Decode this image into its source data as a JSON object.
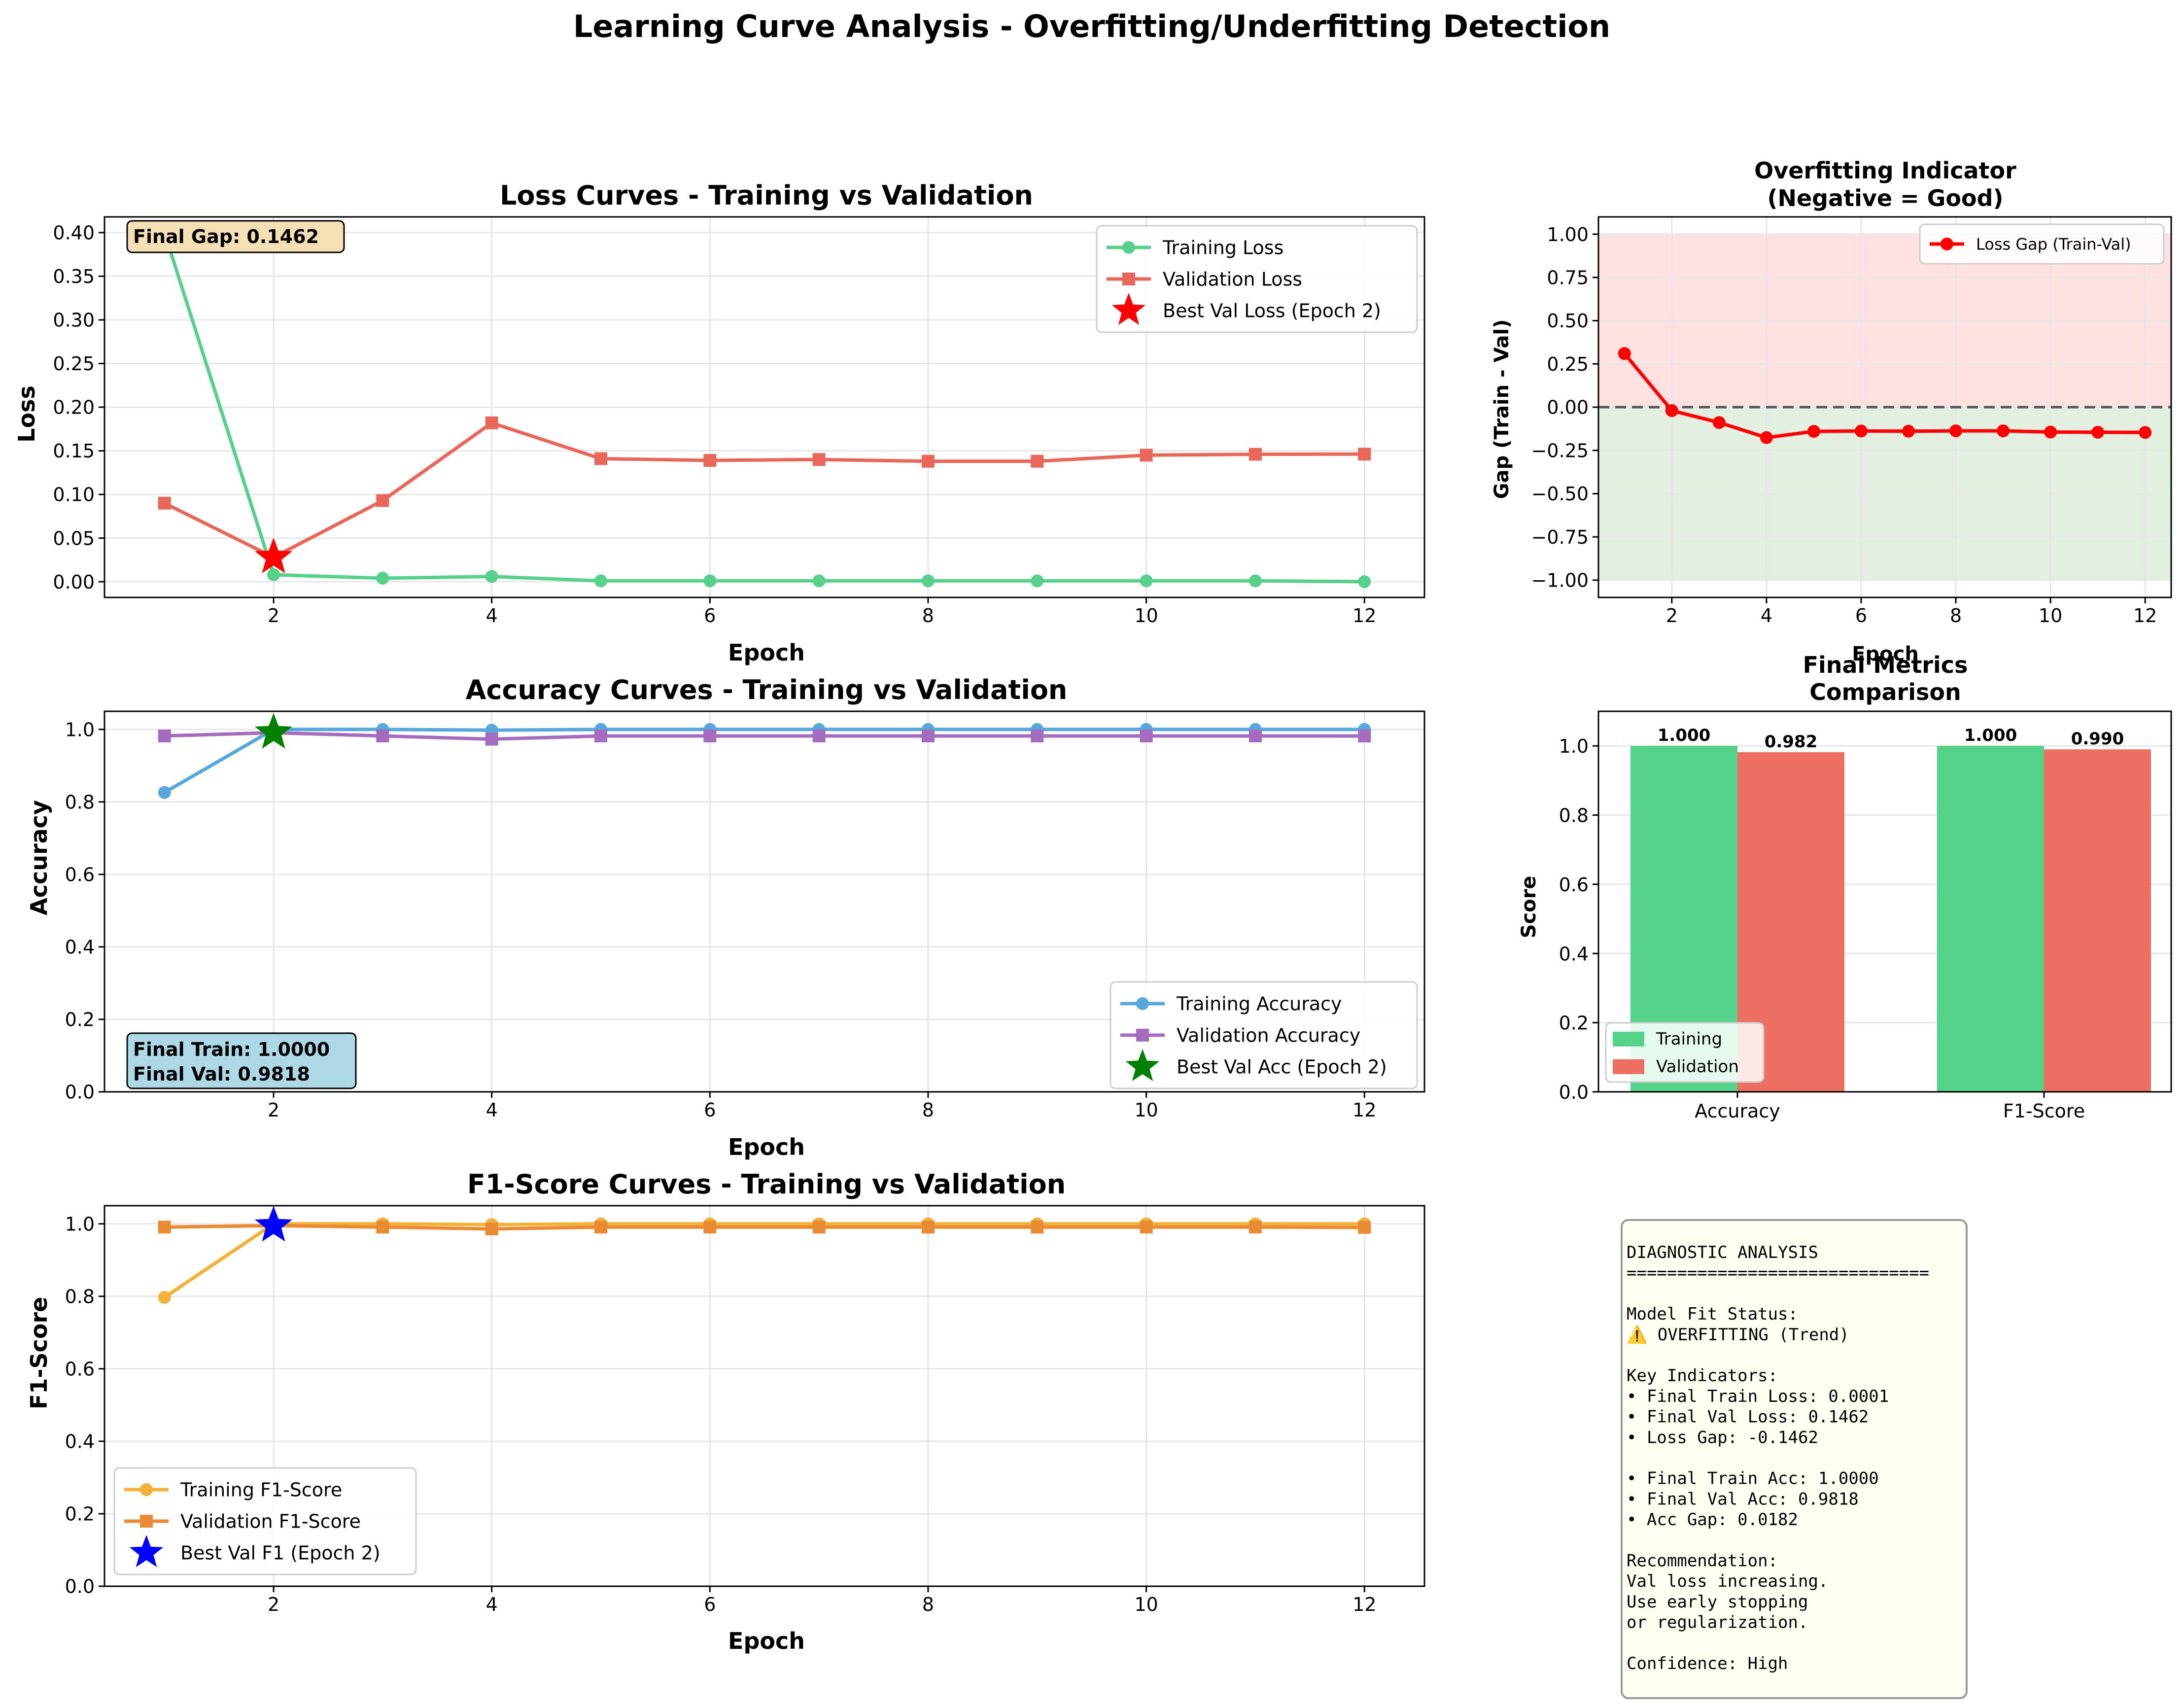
{
  "figure_title": "Learning Curve Analysis - Overfitting/Underfitting Detection",
  "colors": {
    "train_loss": "#56d08a",
    "val_loss": "#e8675a",
    "train_acc": "#57a6dc",
    "val_acc": "#a56bbf",
    "train_f1": "#f2b137",
    "val_f1": "#ea8b33",
    "gap": "#ff0000",
    "bar_train": "#56d38a",
    "bar_val": "#ec6f61"
  },
  "panels": {
    "loss": {
      "title": "Loss Curves - Training vs Validation",
      "gap_note": "Final Gap: 0.1462",
      "legend": [
        "Training Loss",
        "Validation Loss",
        "Best Val Loss (Epoch 2)"
      ]
    },
    "acc": {
      "title": "Accuracy Curves - Training vs Validation",
      "note_lines": [
        "Final Train: 1.0000",
        "Final Val: 0.9818"
      ],
      "legend": [
        "Training Accuracy",
        "Validation Accuracy",
        "Best Val Acc (Epoch 2)"
      ]
    },
    "f1": {
      "title": "F1-Score Curves - Training vs Validation",
      "legend": [
        "Training F1-Score",
        "Validation F1-Score",
        "Best Val F1 (Epoch 2)"
      ]
    },
    "gap": {
      "title_lines": [
        "Overfitting Indicator",
        "(Negative = Good)"
      ],
      "legend": [
        "Loss Gap (Train-Val)"
      ]
    },
    "bars": {
      "title_lines": [
        "Final Metrics",
        "Comparison"
      ],
      "legend": [
        "Training",
        "Validation"
      ]
    }
  },
  "diagnostic_lines": [
    "DIAGNOSTIC ANALYSIS",
    "==============================",
    "",
    "Model Fit Status:",
    "⚠️ OVERFITTING (Trend)",
    "",
    "Key Indicators:",
    "• Final Train Loss: 0.0001",
    "• Final Val Loss: 0.1462",
    "• Loss Gap: -0.1462",
    "",
    "• Final Train Acc: 1.0000",
    "• Final Val Acc: 0.9818",
    "• Acc Gap: 0.0182",
    "",
    "Recommendation:",
    "Val loss increasing.",
    "Use early stopping",
    "or regularization.",
    "",
    "Confidence: High"
  ],
  "chart_data": [
    {
      "type": "line",
      "id": "loss",
      "title": "Loss Curves - Training vs Validation",
      "xlabel": "Epoch",
      "ylabel": "Loss",
      "x": [
        1,
        2,
        3,
        4,
        5,
        6,
        7,
        8,
        9,
        10,
        11,
        12
      ],
      "xlim": [
        0.45,
        12.55
      ],
      "ylim": [
        -0.018,
        0.418
      ],
      "xticks": [
        2,
        4,
        6,
        8,
        10,
        12
      ],
      "yticks": [
        0.0,
        0.05,
        0.1,
        0.15,
        0.2,
        0.25,
        0.3,
        0.35,
        0.4
      ],
      "ytick_labels": [
        "0.00",
        "0.05",
        "0.10",
        "0.15",
        "0.20",
        "0.25",
        "0.30",
        "0.35",
        "0.40"
      ],
      "grid": true,
      "legend": "top-right",
      "series": [
        {
          "name": "Training Loss",
          "marker": "circle",
          "values": [
            0.4,
            0.008,
            0.004,
            0.006,
            0.001,
            0.001,
            0.001,
            0.001,
            0.001,
            0.001,
            0.001,
            0.0001
          ]
        },
        {
          "name": "Validation Loss",
          "marker": "square",
          "values": [
            0.09,
            0.028,
            0.093,
            0.182,
            0.141,
            0.139,
            0.14,
            0.138,
            0.138,
            0.145,
            0.146,
            0.1462
          ]
        }
      ],
      "best": {
        "name": "Best Val Loss (Epoch 2)",
        "x": 2,
        "y": 0.028,
        "color": "#ff0000"
      }
    },
    {
      "type": "line",
      "id": "acc",
      "title": "Accuracy Curves - Training vs Validation",
      "xlabel": "Epoch",
      "ylabel": "Accuracy",
      "x": [
        1,
        2,
        3,
        4,
        5,
        6,
        7,
        8,
        9,
        10,
        11,
        12
      ],
      "xlim": [
        0.45,
        12.55
      ],
      "ylim": [
        0,
        1.05
      ],
      "xticks": [
        2,
        4,
        6,
        8,
        10,
        12
      ],
      "yticks": [
        0,
        0.2,
        0.4,
        0.6,
        0.8,
        1.0
      ],
      "ytick_labels": [
        "0.0",
        "0.2",
        "0.4",
        "0.6",
        "0.8",
        "1.0"
      ],
      "grid": true,
      "legend": "bottom-right",
      "series": [
        {
          "name": "Training Accuracy",
          "marker": "circle",
          "values": [
            0.826,
            1.0,
            1.0,
            0.998,
            1.0,
            1.0,
            1.0,
            1.0,
            1.0,
            1.0,
            1.0,
            1.0
          ]
        },
        {
          "name": "Validation Accuracy",
          "marker": "square",
          "values": [
            0.982,
            0.991,
            0.982,
            0.973,
            0.982,
            0.982,
            0.982,
            0.982,
            0.982,
            0.982,
            0.982,
            0.9818
          ]
        }
      ],
      "best": {
        "name": "Best Val Acc (Epoch 2)",
        "x": 2,
        "y": 0.991,
        "color": "#008000"
      }
    },
    {
      "type": "line",
      "id": "f1",
      "title": "F1-Score Curves - Training vs Validation",
      "xlabel": "Epoch",
      "ylabel": "F1-Score",
      "x": [
        1,
        2,
        3,
        4,
        5,
        6,
        7,
        8,
        9,
        10,
        11,
        12
      ],
      "xlim": [
        0.45,
        12.55
      ],
      "ylim": [
        0,
        1.05
      ],
      "xticks": [
        2,
        4,
        6,
        8,
        10,
        12
      ],
      "yticks": [
        0,
        0.2,
        0.4,
        0.6,
        0.8,
        1.0
      ],
      "ytick_labels": [
        "0.0",
        "0.2",
        "0.4",
        "0.6",
        "0.8",
        "1.0"
      ],
      "grid": true,
      "legend": "bottom-left",
      "series": [
        {
          "name": "Training F1-Score",
          "marker": "circle",
          "values": [
            0.797,
            1.0,
            1.0,
            0.998,
            1.0,
            1.0,
            1.0,
            1.0,
            1.0,
            1.0,
            1.0,
            1.0
          ]
        },
        {
          "name": "Validation F1-Score",
          "marker": "square",
          "values": [
            0.991,
            0.995,
            0.991,
            0.986,
            0.991,
            0.991,
            0.991,
            0.991,
            0.991,
            0.991,
            0.991,
            0.99
          ]
        }
      ],
      "best": {
        "name": "Best Val F1 (Epoch 2)",
        "x": 2,
        "y": 0.995,
        "color": "#0000ff"
      }
    },
    {
      "type": "line",
      "id": "gap",
      "title": "Overfitting Indicator\n(Negative = Good)",
      "xlabel": "Epoch",
      "ylabel": "Gap (Train - Val)",
      "x": [
        1,
        2,
        3,
        4,
        5,
        6,
        7,
        8,
        9,
        10,
        11,
        12
      ],
      "xlim": [
        0.45,
        12.55
      ],
      "ylim": [
        -1.1,
        1.1
      ],
      "xticks": [
        2,
        4,
        6,
        8,
        10,
        12
      ],
      "yticks": [
        -1.0,
        -0.75,
        -0.5,
        -0.25,
        0,
        0.25,
        0.5,
        0.75,
        1.0
      ],
      "ytick_labels": [
        "−1.00",
        "−0.75",
        "−0.50",
        "−0.25",
        "0.00",
        "0.25",
        "0.50",
        "0.75",
        "1.00"
      ],
      "grid": true,
      "legend": "top-right",
      "series": [
        {
          "name": "Loss Gap (Train-Val)",
          "marker": "circle",
          "values": [
            0.31,
            -0.02,
            -0.089,
            -0.176,
            -0.14,
            -0.138,
            -0.139,
            -0.137,
            -0.137,
            -0.144,
            -0.145,
            -0.1462
          ]
        }
      ],
      "regions": [
        {
          "from": 0,
          "to": 1.0,
          "color": "#ffe1e1"
        },
        {
          "from": -1.0,
          "to": 0,
          "color": "#e3f0e1"
        }
      ],
      "hline": 0
    },
    {
      "type": "bar",
      "id": "bars",
      "title": "Final Metrics\nComparison",
      "ylabel": "Score",
      "categories": [
        "Accuracy",
        "F1-Score"
      ],
      "ylim": [
        0,
        1.1
      ],
      "yticks": [
        0,
        0.2,
        0.4,
        0.6,
        0.8,
        1.0
      ],
      "ytick_labels": [
        "0.0",
        "0.2",
        "0.4",
        "0.6",
        "0.8",
        "1.0"
      ],
      "grid": true,
      "legend": "bottom-left",
      "series": [
        {
          "name": "Training",
          "values": [
            1.0,
            1.0
          ],
          "labels": [
            "1.000",
            "1.000"
          ]
        },
        {
          "name": "Validation",
          "values": [
            0.982,
            0.99
          ],
          "labels": [
            "0.982",
            "0.990"
          ]
        }
      ]
    }
  ]
}
